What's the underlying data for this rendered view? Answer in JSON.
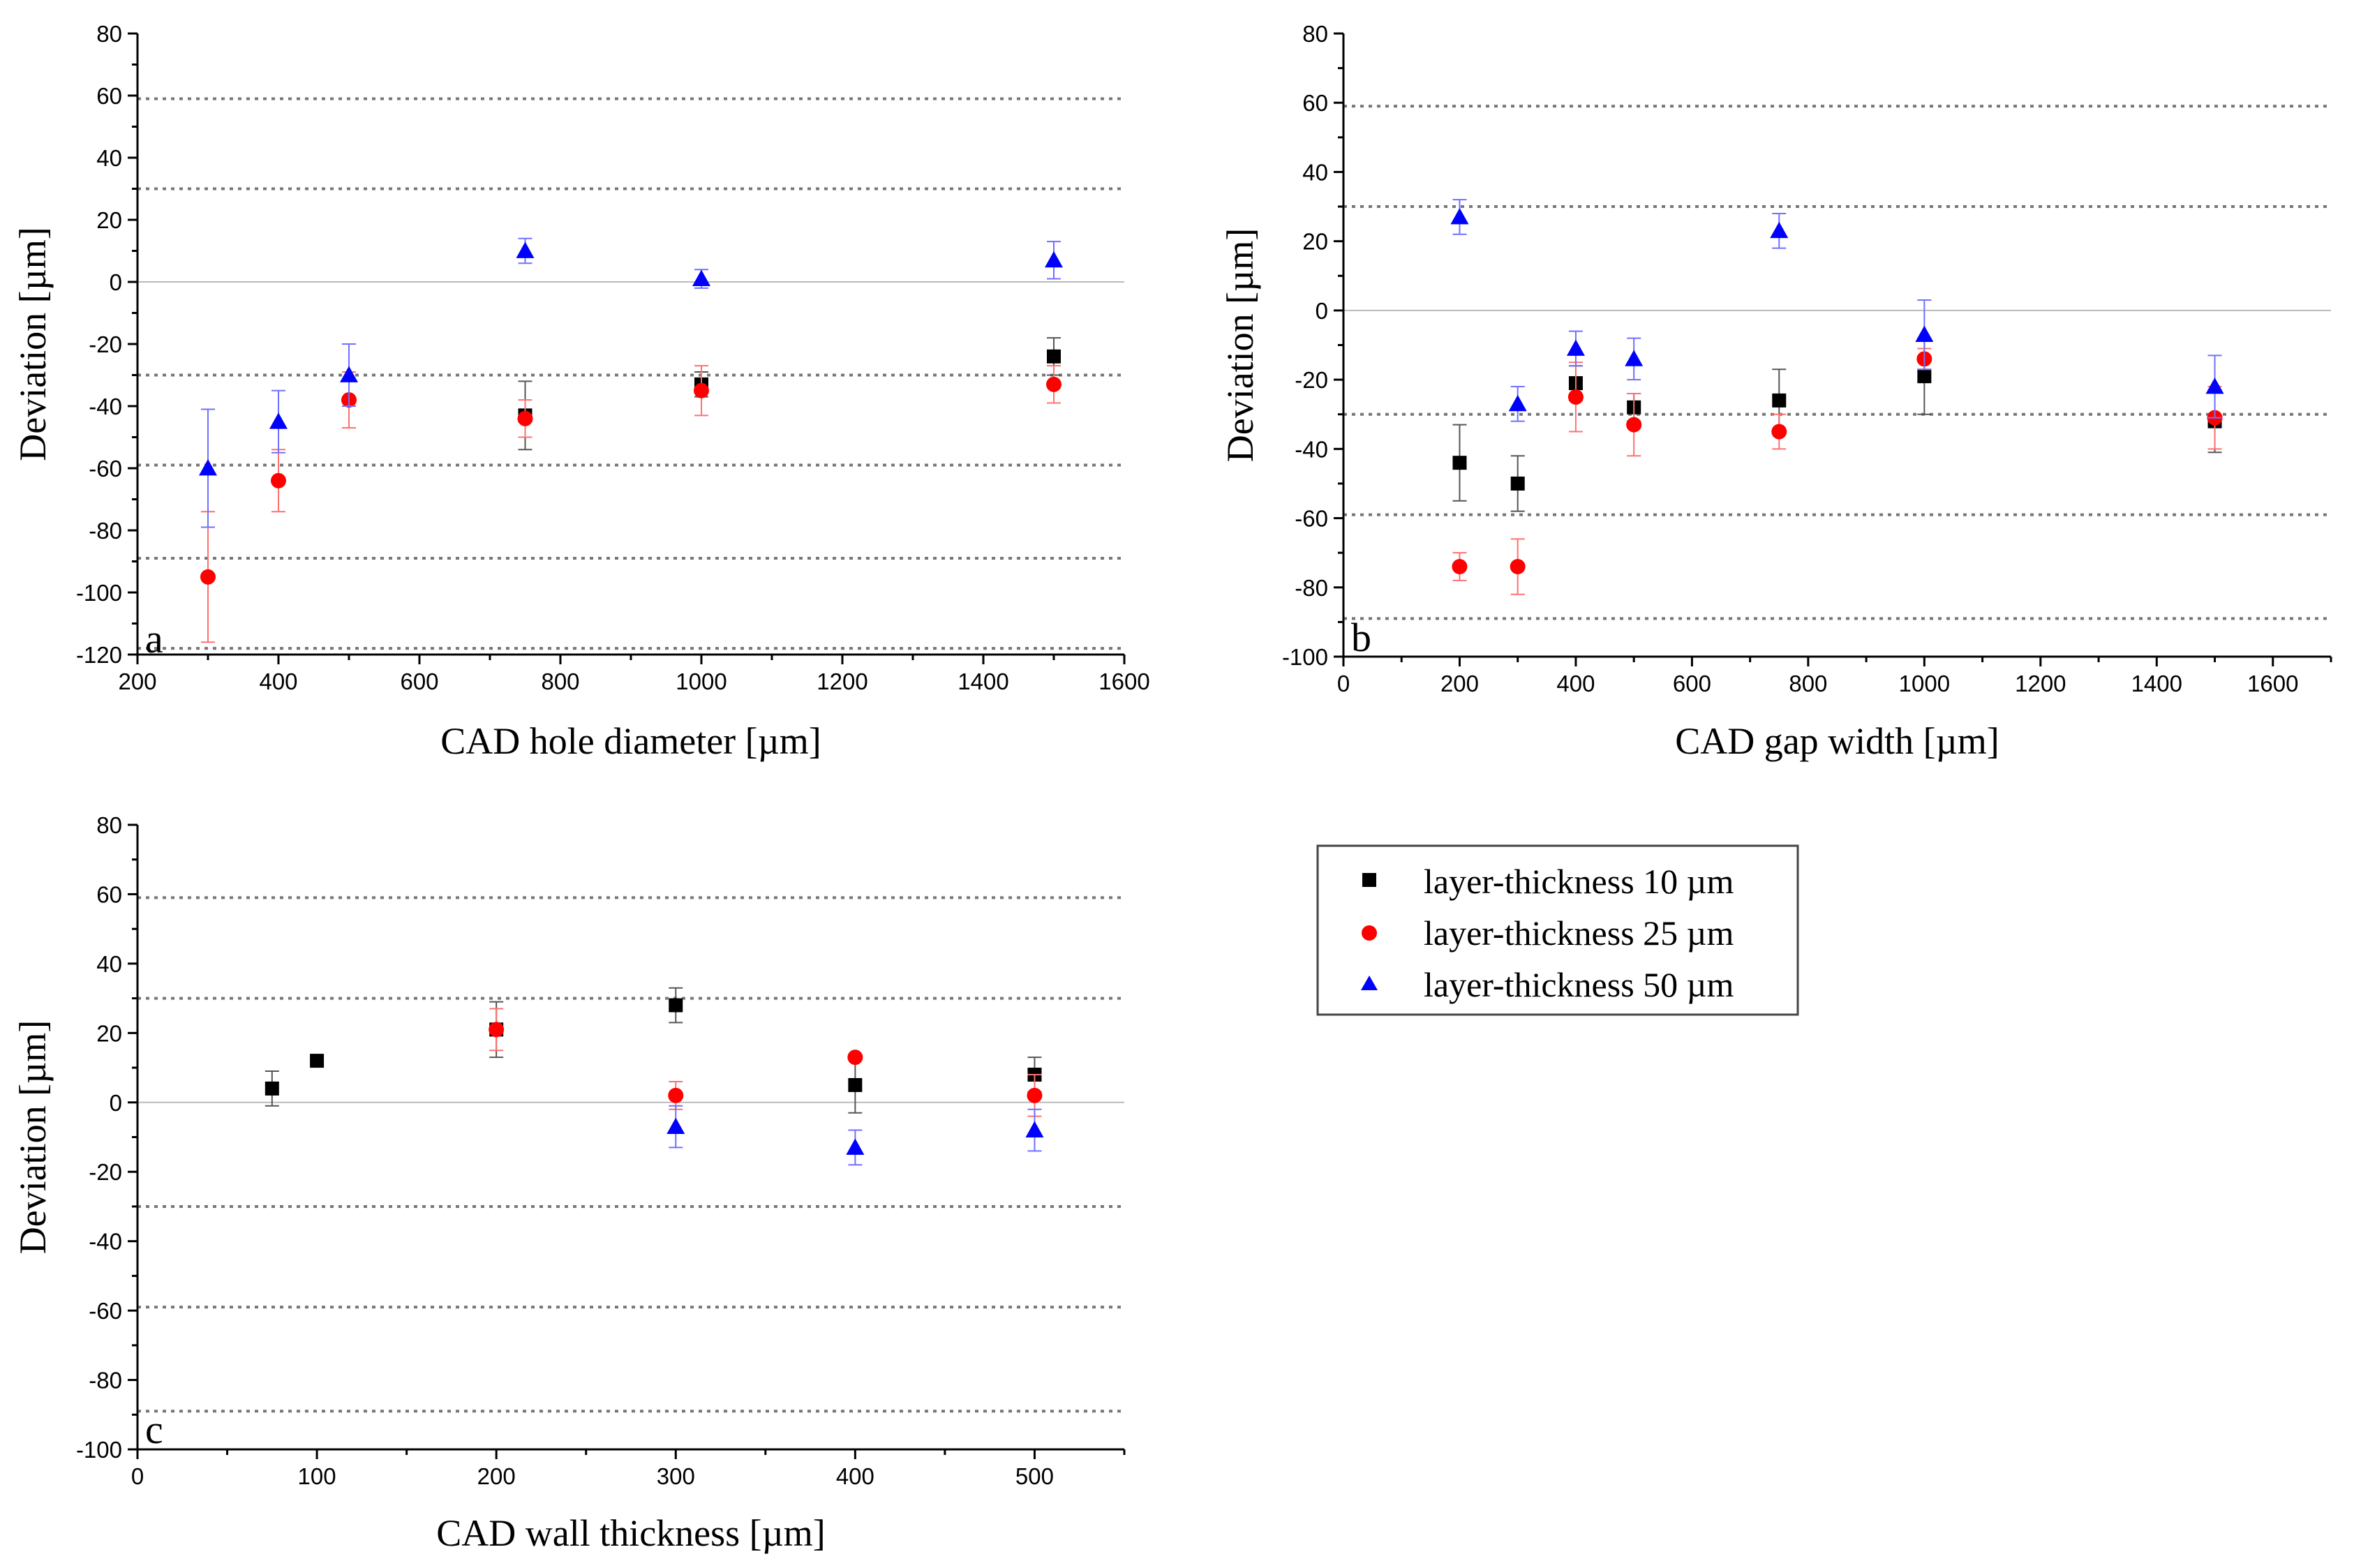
{
  "chart_data": [
    {
      "type": "scatter",
      "panel_label": "a",
      "xlabel": "CAD hole diameter [µm]",
      "ylabel": "Deviation [µm]",
      "xlim": [
        200,
        1600
      ],
      "ylim": [
        -120,
        80
      ],
      "xticks": [
        200,
        400,
        600,
        800,
        1000,
        1200,
        1400,
        1600
      ],
      "yticks": [
        -120,
        -100,
        -80,
        -60,
        -40,
        -20,
        0,
        20,
        40,
        60,
        80
      ],
      "xtick_labels": [
        "200",
        "400",
        "600",
        "800",
        "1000",
        "1200",
        "1400",
        "1600"
      ],
      "ytick_labels": [
        "-120",
        "-100",
        "-80",
        "-60",
        "-40",
        "-20",
        "0",
        "20",
        "40",
        "60",
        "80"
      ],
      "zero_line": 0,
      "reference_lines": [
        59,
        30,
        -30,
        -59,
        -89,
        -118
      ],
      "series": [
        {
          "name": "layer-thickness 10 µm",
          "marker": "square",
          "color": "#000000",
          "x": [
            750,
            1000,
            1500
          ],
          "y": [
            -43,
            -33,
            -24
          ],
          "err": [
            11,
            4,
            6
          ]
        },
        {
          "name": "layer-thickness 25 µm",
          "marker": "circle",
          "color": "#ff0000",
          "x": [
            300,
            400,
            500,
            750,
            1000,
            1500
          ],
          "y": [
            -95,
            -64,
            -38,
            -44,
            -35,
            -33
          ],
          "err": [
            21,
            10,
            9,
            6,
            8,
            6
          ]
        },
        {
          "name": "layer-thickness 50 µm",
          "marker": "triangle",
          "color": "#0000ff",
          "x": [
            300,
            400,
            500,
            750,
            1000,
            1500
          ],
          "y": [
            -60,
            -45,
            -30,
            10,
            1,
            7
          ],
          "err": [
            19,
            10,
            10,
            4,
            3,
            6
          ]
        }
      ]
    },
    {
      "type": "scatter",
      "panel_label": "b",
      "xlabel": "CAD gap width [µm]",
      "ylabel": "Deviation [µm]",
      "xlim": [
        0,
        1700
      ],
      "ylim": [
        -100,
        80
      ],
      "xticks": [
        0,
        200,
        400,
        600,
        800,
        1000,
        1200,
        1400,
        1600
      ],
      "yticks": [
        -100,
        -80,
        -60,
        -40,
        -20,
        0,
        20,
        40,
        60,
        80
      ],
      "xtick_labels": [
        "0",
        "200",
        "400",
        "600",
        "800",
        "1000",
        "1200",
        "1400",
        "1600"
      ],
      "ytick_labels": [
        "-100",
        "-80",
        "-60",
        "-40",
        "-20",
        "0",
        "20",
        "40",
        "60",
        "80"
      ],
      "zero_line": 0,
      "reference_lines": [
        59,
        30,
        -30,
        -59,
        -89
      ],
      "series": [
        {
          "name": "layer-thickness 10 µm",
          "marker": "square",
          "color": "#000000",
          "x": [
            200,
            300,
            400,
            500,
            750,
            1000,
            1500
          ],
          "y": [
            -44,
            -50,
            -21,
            -28,
            -26,
            -19,
            -32
          ],
          "err": [
            11,
            8,
            5,
            4,
            9,
            11,
            9
          ]
        },
        {
          "name": "layer-thickness 25 µm",
          "marker": "circle",
          "color": "#ff0000",
          "x": [
            200,
            300,
            400,
            500,
            750,
            1000,
            1500
          ],
          "y": [
            -74,
            -74,
            -25,
            -33,
            -35,
            -14,
            -31
          ],
          "err": [
            4,
            8,
            10,
            9,
            5,
            3,
            9
          ]
        },
        {
          "name": "layer-thickness 50 µm",
          "marker": "triangle",
          "color": "#0000ff",
          "x": [
            200,
            300,
            400,
            500,
            750,
            1000,
            1500
          ],
          "y": [
            27,
            -27,
            -11,
            -14,
            23,
            -7,
            -22
          ],
          "err": [
            5,
            5,
            5,
            6,
            5,
            10,
            9
          ]
        }
      ]
    },
    {
      "type": "scatter",
      "panel_label": "c",
      "xlabel": "CAD wall thickness [µm]",
      "ylabel": "Deviation [µm]",
      "xlim": [
        0,
        550
      ],
      "ylim": [
        -100,
        80
      ],
      "xticks": [
        0,
        100,
        200,
        300,
        400,
        500
      ],
      "yticks": [
        -100,
        -80,
        -60,
        -40,
        -20,
        0,
        20,
        40,
        60,
        80
      ],
      "xtick_labels": [
        "0",
        "100",
        "200",
        "300",
        "400",
        "500"
      ],
      "ytick_labels": [
        "-100",
        "-80",
        "-60",
        "-40",
        "-20",
        "0",
        "20",
        "40",
        "60",
        "80"
      ],
      "zero_line": 0,
      "reference_lines": [
        59,
        30,
        -30,
        -59,
        -89
      ],
      "series": [
        {
          "name": "layer-thickness 10 µm",
          "marker": "square",
          "color": "#000000",
          "x": [
            75,
            100,
            200,
            300,
            400,
            500
          ],
          "y": [
            4,
            12,
            21,
            28,
            5,
            8
          ],
          "err": [
            5,
            0,
            8,
            5,
            8,
            5
          ]
        },
        {
          "name": "layer-thickness 25 µm",
          "marker": "circle",
          "color": "#ff0000",
          "x": [
            200,
            300,
            400,
            500
          ],
          "y": [
            21,
            2,
            13,
            2
          ],
          "err": [
            6,
            4,
            0,
            6
          ]
        },
        {
          "name": "layer-thickness 50 µm",
          "marker": "triangle",
          "color": "#0000ff",
          "x": [
            300,
            400,
            500
          ],
          "y": [
            -7,
            -13,
            -8
          ],
          "err": [
            6,
            5,
            6
          ]
        }
      ]
    }
  ],
  "legend": {
    "entries": [
      {
        "label": "layer-thickness 10 µm",
        "marker": "square",
        "color": "#000000"
      },
      {
        "label": "layer-thickness 25 µm",
        "marker": "circle",
        "color": "#ff0000"
      },
      {
        "label": "layer-thickness 50 µm",
        "marker": "triangle",
        "color": "#0000ff"
      }
    ]
  },
  "colors": {
    "axis": "#000000",
    "zero_line": "#bbbbbb",
    "reference_line": "#777777"
  }
}
